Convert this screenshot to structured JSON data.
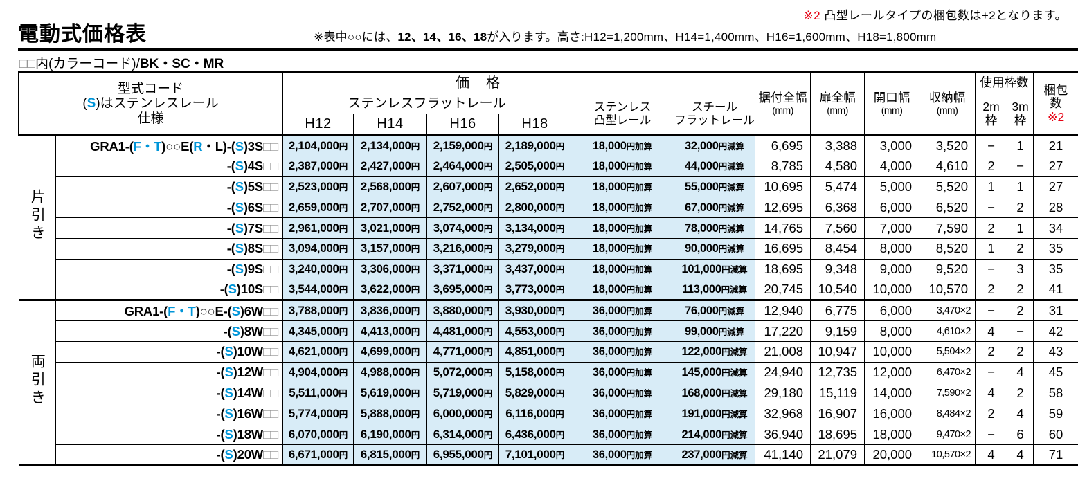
{
  "colors": {
    "accent_blue": "#0095d8",
    "note_red": "#e60012",
    "price_cell_bg": "#d8ecf7"
  },
  "page": {
    "title": "電動式価格表",
    "top_note": {
      "marker": "※2",
      "text": "凸型レールタイプの梱包数は+2となります。"
    },
    "mid_note": {
      "pre": "※表中○○には、",
      "bold": "12、14、16、18",
      "post": "が入ります。高さ:H12=1,200mm、H14=1,400mm、H16=1,600mm、H18=1,800mm"
    },
    "color_code": {
      "squares": "□□",
      "label": "内(カラーコード)/",
      "codes": "BK・SC・MR"
    }
  },
  "table": {
    "yen": "円",
    "header": {
      "model_line1": "型式コード",
      "model_line2_pre": "(",
      "model_line2_s": "S",
      "model_line2_post": ")はステンレスレール",
      "model_line3": "仕様",
      "price": "価　格",
      "stainless_flat": "ステンレスフラットレール",
      "h_cols": [
        "H12",
        "H14",
        "H16",
        "H18"
      ],
      "totsu_line1": "ステンレス",
      "totsu_line2": "凸型レール",
      "steel_line1": "スチール",
      "steel_line2": "フラットレール",
      "install_line1": "据付全幅",
      "install_line2": "(mm)",
      "door_line1": "扉全幅",
      "door_line2": "(mm)",
      "opening_line1": "開口幅",
      "opening_line2": "(mm)",
      "storage_line1": "収納幅",
      "storage_line2": "(mm)",
      "frames": "使用枠数",
      "frame2m_line1": "2m",
      "frame2m_line2": "枠",
      "frame3m_line1": "3m",
      "frame3m_line2": "枠",
      "package_line1": "梱包",
      "package_line2": "数",
      "package_note": "※2"
    },
    "groups": [
      {
        "label": "片引き",
        "rows": [
          {
            "code": [
              [
                "GRA1-(",
                "t"
              ],
              [
                "F・T",
                "b"
              ],
              [
                ")",
                "t"
              ],
              [
                "○○",
                "o"
              ],
              [
                "E(",
                "t"
              ],
              [
                "R",
                "b"
              ],
              [
                "・L)-(",
                "t"
              ],
              [
                "S",
                "b"
              ],
              [
                ")3S",
                "t"
              ],
              [
                "□□",
                "q"
              ]
            ],
            "prices": [
              "2,104,000",
              "2,134,000",
              "2,159,000",
              "2,189,000"
            ],
            "totsu": "18,000円加算",
            "steel": "32,000円減算",
            "install": "6,695",
            "door": "3,388",
            "opening": "3,000",
            "storage": "3,520",
            "f2m": "−",
            "f3m": "1",
            "pkg": "21"
          },
          {
            "code": [
              [
                "-(",
                "t"
              ],
              [
                "S",
                "b"
              ],
              [
                ")4S",
                "t"
              ],
              [
                "□□",
                "q"
              ]
            ],
            "prices": [
              "2,387,000",
              "2,427,000",
              "2,464,000",
              "2,505,000"
            ],
            "totsu": "18,000円加算",
            "steel": "44,000円減算",
            "install": "8,785",
            "door": "4,580",
            "opening": "4,000",
            "storage": "4,610",
            "f2m": "2",
            "f3m": "−",
            "pkg": "27"
          },
          {
            "code": [
              [
                "-(",
                "t"
              ],
              [
                "S",
                "b"
              ],
              [
                ")5S",
                "t"
              ],
              [
                "□□",
                "q"
              ]
            ],
            "prices": [
              "2,523,000",
              "2,568,000",
              "2,607,000",
              "2,652,000"
            ],
            "totsu": "18,000円加算",
            "steel": "55,000円減算",
            "install": "10,695",
            "door": "5,474",
            "opening": "5,000",
            "storage": "5,520",
            "f2m": "1",
            "f3m": "1",
            "pkg": "27"
          },
          {
            "code": [
              [
                "-(",
                "t"
              ],
              [
                "S",
                "b"
              ],
              [
                ")6S",
                "t"
              ],
              [
                "□□",
                "q"
              ]
            ],
            "prices": [
              "2,659,000",
              "2,707,000",
              "2,752,000",
              "2,800,000"
            ],
            "totsu": "18,000円加算",
            "steel": "67,000円減算",
            "install": "12,695",
            "door": "6,368",
            "opening": "6,000",
            "storage": "6,520",
            "f2m": "−",
            "f3m": "2",
            "pkg": "28"
          },
          {
            "code": [
              [
                "-(",
                "t"
              ],
              [
                "S",
                "b"
              ],
              [
                ")7S",
                "t"
              ],
              [
                "□□",
                "q"
              ]
            ],
            "prices": [
              "2,961,000",
              "3,021,000",
              "3,074,000",
              "3,134,000"
            ],
            "totsu": "18,000円加算",
            "steel": "78,000円減算",
            "install": "14,765",
            "door": "7,560",
            "opening": "7,000",
            "storage": "7,590",
            "f2m": "2",
            "f3m": "1",
            "pkg": "34"
          },
          {
            "code": [
              [
                "-(",
                "t"
              ],
              [
                "S",
                "b"
              ],
              [
                ")8S",
                "t"
              ],
              [
                "□□",
                "q"
              ]
            ],
            "prices": [
              "3,094,000",
              "3,157,000",
              "3,216,000",
              "3,279,000"
            ],
            "totsu": "18,000円加算",
            "steel": "90,000円減算",
            "install": "16,695",
            "door": "8,454",
            "opening": "8,000",
            "storage": "8,520",
            "f2m": "1",
            "f3m": "2",
            "pkg": "35"
          },
          {
            "code": [
              [
                "-(",
                "t"
              ],
              [
                "S",
                "b"
              ],
              [
                ")9S",
                "t"
              ],
              [
                "□□",
                "q"
              ]
            ],
            "prices": [
              "3,240,000",
              "3,306,000",
              "3,371,000",
              "3,437,000"
            ],
            "totsu": "18,000円加算",
            "steel": "101,000円減算",
            "install": "18,695",
            "door": "9,348",
            "opening": "9,000",
            "storage": "9,520",
            "f2m": "−",
            "f3m": "3",
            "pkg": "35"
          },
          {
            "code": [
              [
                "-(",
                "t"
              ],
              [
                "S",
                "b"
              ],
              [
                ")10S",
                "t"
              ],
              [
                "□□",
                "q"
              ]
            ],
            "prices": [
              "3,544,000",
              "3,622,000",
              "3,695,000",
              "3,773,000"
            ],
            "totsu": "18,000円加算",
            "steel": "113,000円減算",
            "install": "20,745",
            "door": "10,540",
            "opening": "10,000",
            "storage": "10,570",
            "f2m": "2",
            "f3m": "2",
            "pkg": "41"
          }
        ]
      },
      {
        "label": "両引き",
        "rows": [
          {
            "code": [
              [
                "GRA1-(",
                "t"
              ],
              [
                "F・T",
                "b"
              ],
              [
                ")",
                "t"
              ],
              [
                "○○",
                "o"
              ],
              [
                "E-(",
                "t"
              ],
              [
                "S",
                "b"
              ],
              [
                ")6W",
                "t"
              ],
              [
                "□□",
                "q"
              ]
            ],
            "prices": [
              "3,788,000",
              "3,836,000",
              "3,880,000",
              "3,930,000"
            ],
            "totsu": "36,000円加算",
            "steel": "76,000円減算",
            "install": "12,940",
            "door": "6,775",
            "opening": "6,000",
            "storage": "3,470×2",
            "f2m": "−",
            "f3m": "2",
            "pkg": "31"
          },
          {
            "code": [
              [
                "-(",
                "t"
              ],
              [
                "S",
                "b"
              ],
              [
                ")8W",
                "t"
              ],
              [
                "□□",
                "q"
              ]
            ],
            "prices": [
              "4,345,000",
              "4,413,000",
              "4,481,000",
              "4,553,000"
            ],
            "totsu": "36,000円加算",
            "steel": "99,000円減算",
            "install": "17,220",
            "door": "9,159",
            "opening": "8,000",
            "storage": "4,610×2",
            "f2m": "4",
            "f3m": "−",
            "pkg": "42"
          },
          {
            "code": [
              [
                "-(",
                "t"
              ],
              [
                "S",
                "b"
              ],
              [
                ")10W",
                "t"
              ],
              [
                "□□",
                "q"
              ]
            ],
            "prices": [
              "4,621,000",
              "4,699,000",
              "4,771,000",
              "4,851,000"
            ],
            "totsu": "36,000円加算",
            "steel": "122,000円減算",
            "install": "21,008",
            "door": "10,947",
            "opening": "10,000",
            "storage": "5,504×2",
            "f2m": "2",
            "f3m": "2",
            "pkg": "43"
          },
          {
            "code": [
              [
                "-(",
                "t"
              ],
              [
                "S",
                "b"
              ],
              [
                ")12W",
                "t"
              ],
              [
                "□□",
                "q"
              ]
            ],
            "prices": [
              "4,904,000",
              "4,988,000",
              "5,072,000",
              "5,158,000"
            ],
            "totsu": "36,000円加算",
            "steel": "145,000円減算",
            "install": "24,940",
            "door": "12,735",
            "opening": "12,000",
            "storage": "6,470×2",
            "f2m": "−",
            "f3m": "4",
            "pkg": "45"
          },
          {
            "code": [
              [
                "-(",
                "t"
              ],
              [
                "S",
                "b"
              ],
              [
                ")14W",
                "t"
              ],
              [
                "□□",
                "q"
              ]
            ],
            "prices": [
              "5,511,000",
              "5,619,000",
              "5,719,000",
              "5,829,000"
            ],
            "totsu": "36,000円加算",
            "steel": "168,000円減算",
            "install": "29,180",
            "door": "15,119",
            "opening": "14,000",
            "storage": "7,590×2",
            "f2m": "4",
            "f3m": "2",
            "pkg": "58"
          },
          {
            "code": [
              [
                "-(",
                "t"
              ],
              [
                "S",
                "b"
              ],
              [
                ")16W",
                "t"
              ],
              [
                "□□",
                "q"
              ]
            ],
            "prices": [
              "5,774,000",
              "5,888,000",
              "6,000,000",
              "6,116,000"
            ],
            "totsu": "36,000円加算",
            "steel": "191,000円減算",
            "install": "32,968",
            "door": "16,907",
            "opening": "16,000",
            "storage": "8,484×2",
            "f2m": "2",
            "f3m": "4",
            "pkg": "59"
          },
          {
            "code": [
              [
                "-(",
                "t"
              ],
              [
                "S",
                "b"
              ],
              [
                ")18W",
                "t"
              ],
              [
                "□□",
                "q"
              ]
            ],
            "prices": [
              "6,070,000",
              "6,190,000",
              "6,314,000",
              "6,436,000"
            ],
            "totsu": "36,000円加算",
            "steel": "214,000円減算",
            "install": "36,940",
            "door": "18,695",
            "opening": "18,000",
            "storage": "9,470×2",
            "f2m": "−",
            "f3m": "6",
            "pkg": "60"
          },
          {
            "code": [
              [
                "-(",
                "t"
              ],
              [
                "S",
                "b"
              ],
              [
                ")20W",
                "t"
              ],
              [
                "□□",
                "q"
              ]
            ],
            "prices": [
              "6,671,000",
              "6,815,000",
              "6,955,000",
              "7,101,000"
            ],
            "totsu": "36,000円加算",
            "steel": "237,000円減算",
            "install": "41,140",
            "door": "21,079",
            "opening": "20,000",
            "storage": "10,570×2",
            "f2m": "4",
            "f3m": "4",
            "pkg": "71"
          }
        ]
      }
    ]
  }
}
